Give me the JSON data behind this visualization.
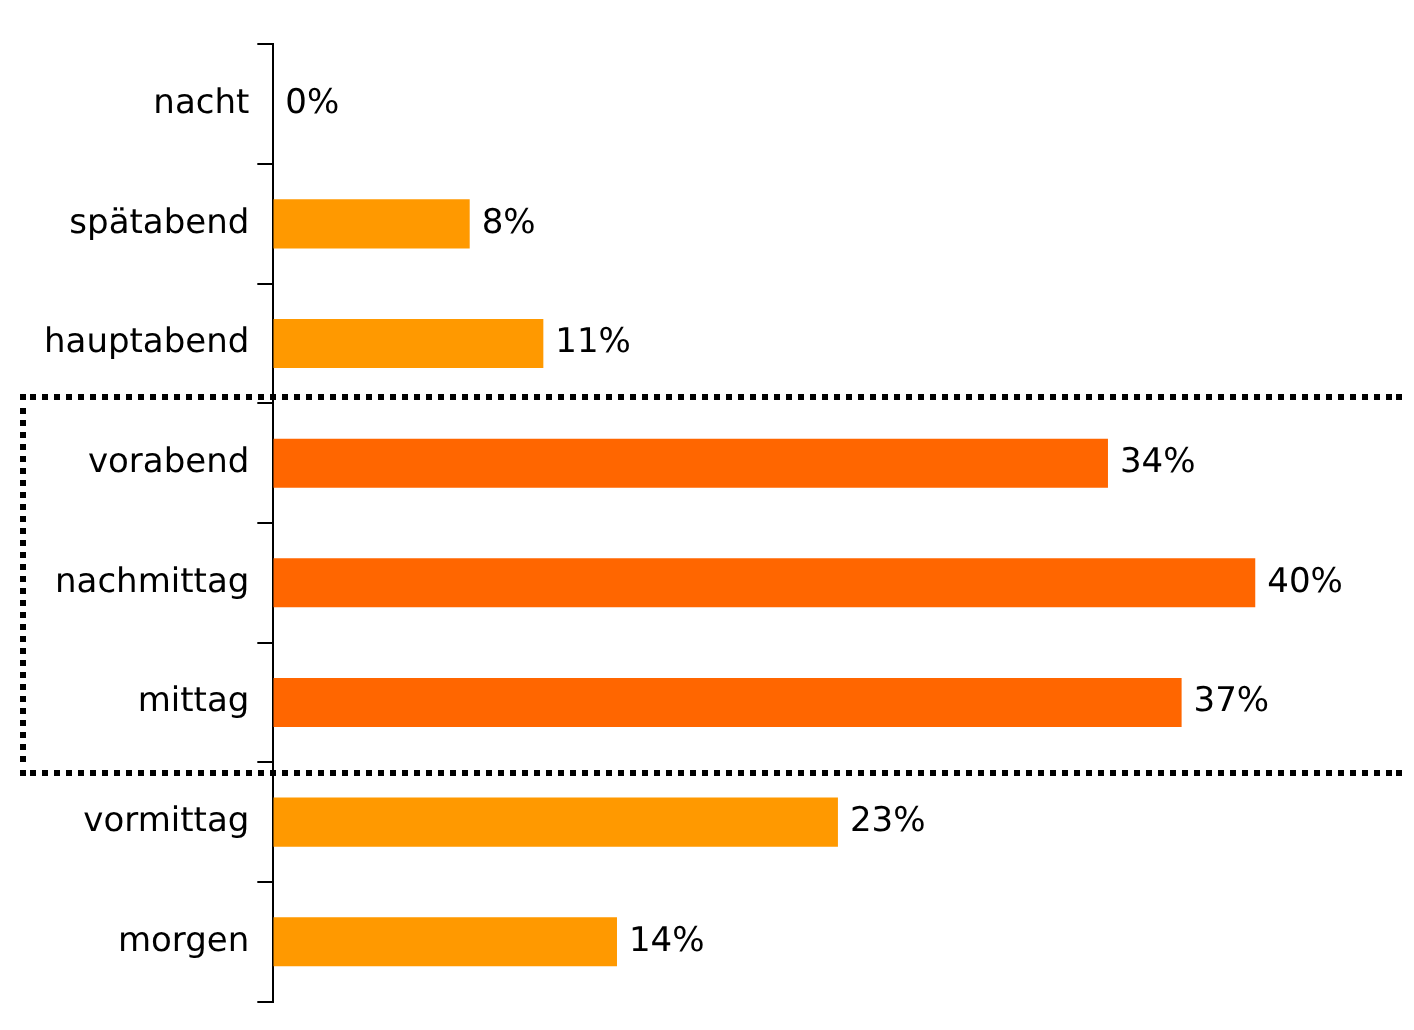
{
  "chart_data": {
    "type": "bar",
    "orientation": "horizontal",
    "categories": [
      "nacht",
      "spätabend",
      "hauptabend",
      "vorabend",
      "nachmittag",
      "mittag",
      "vormittag",
      "morgen"
    ],
    "values": [
      0,
      8,
      11,
      34,
      40,
      37,
      23,
      14
    ],
    "value_labels": [
      "0%",
      "8%",
      "11%",
      "34%",
      "40%",
      "37%",
      "23%",
      "14%"
    ],
    "colors": [
      "#ff9900",
      "#ff9900",
      "#ff9900",
      "#ff6600",
      "#ff6600",
      "#ff6600",
      "#ff9900",
      "#ff9900"
    ],
    "grid": false,
    "legend": false
  }
}
